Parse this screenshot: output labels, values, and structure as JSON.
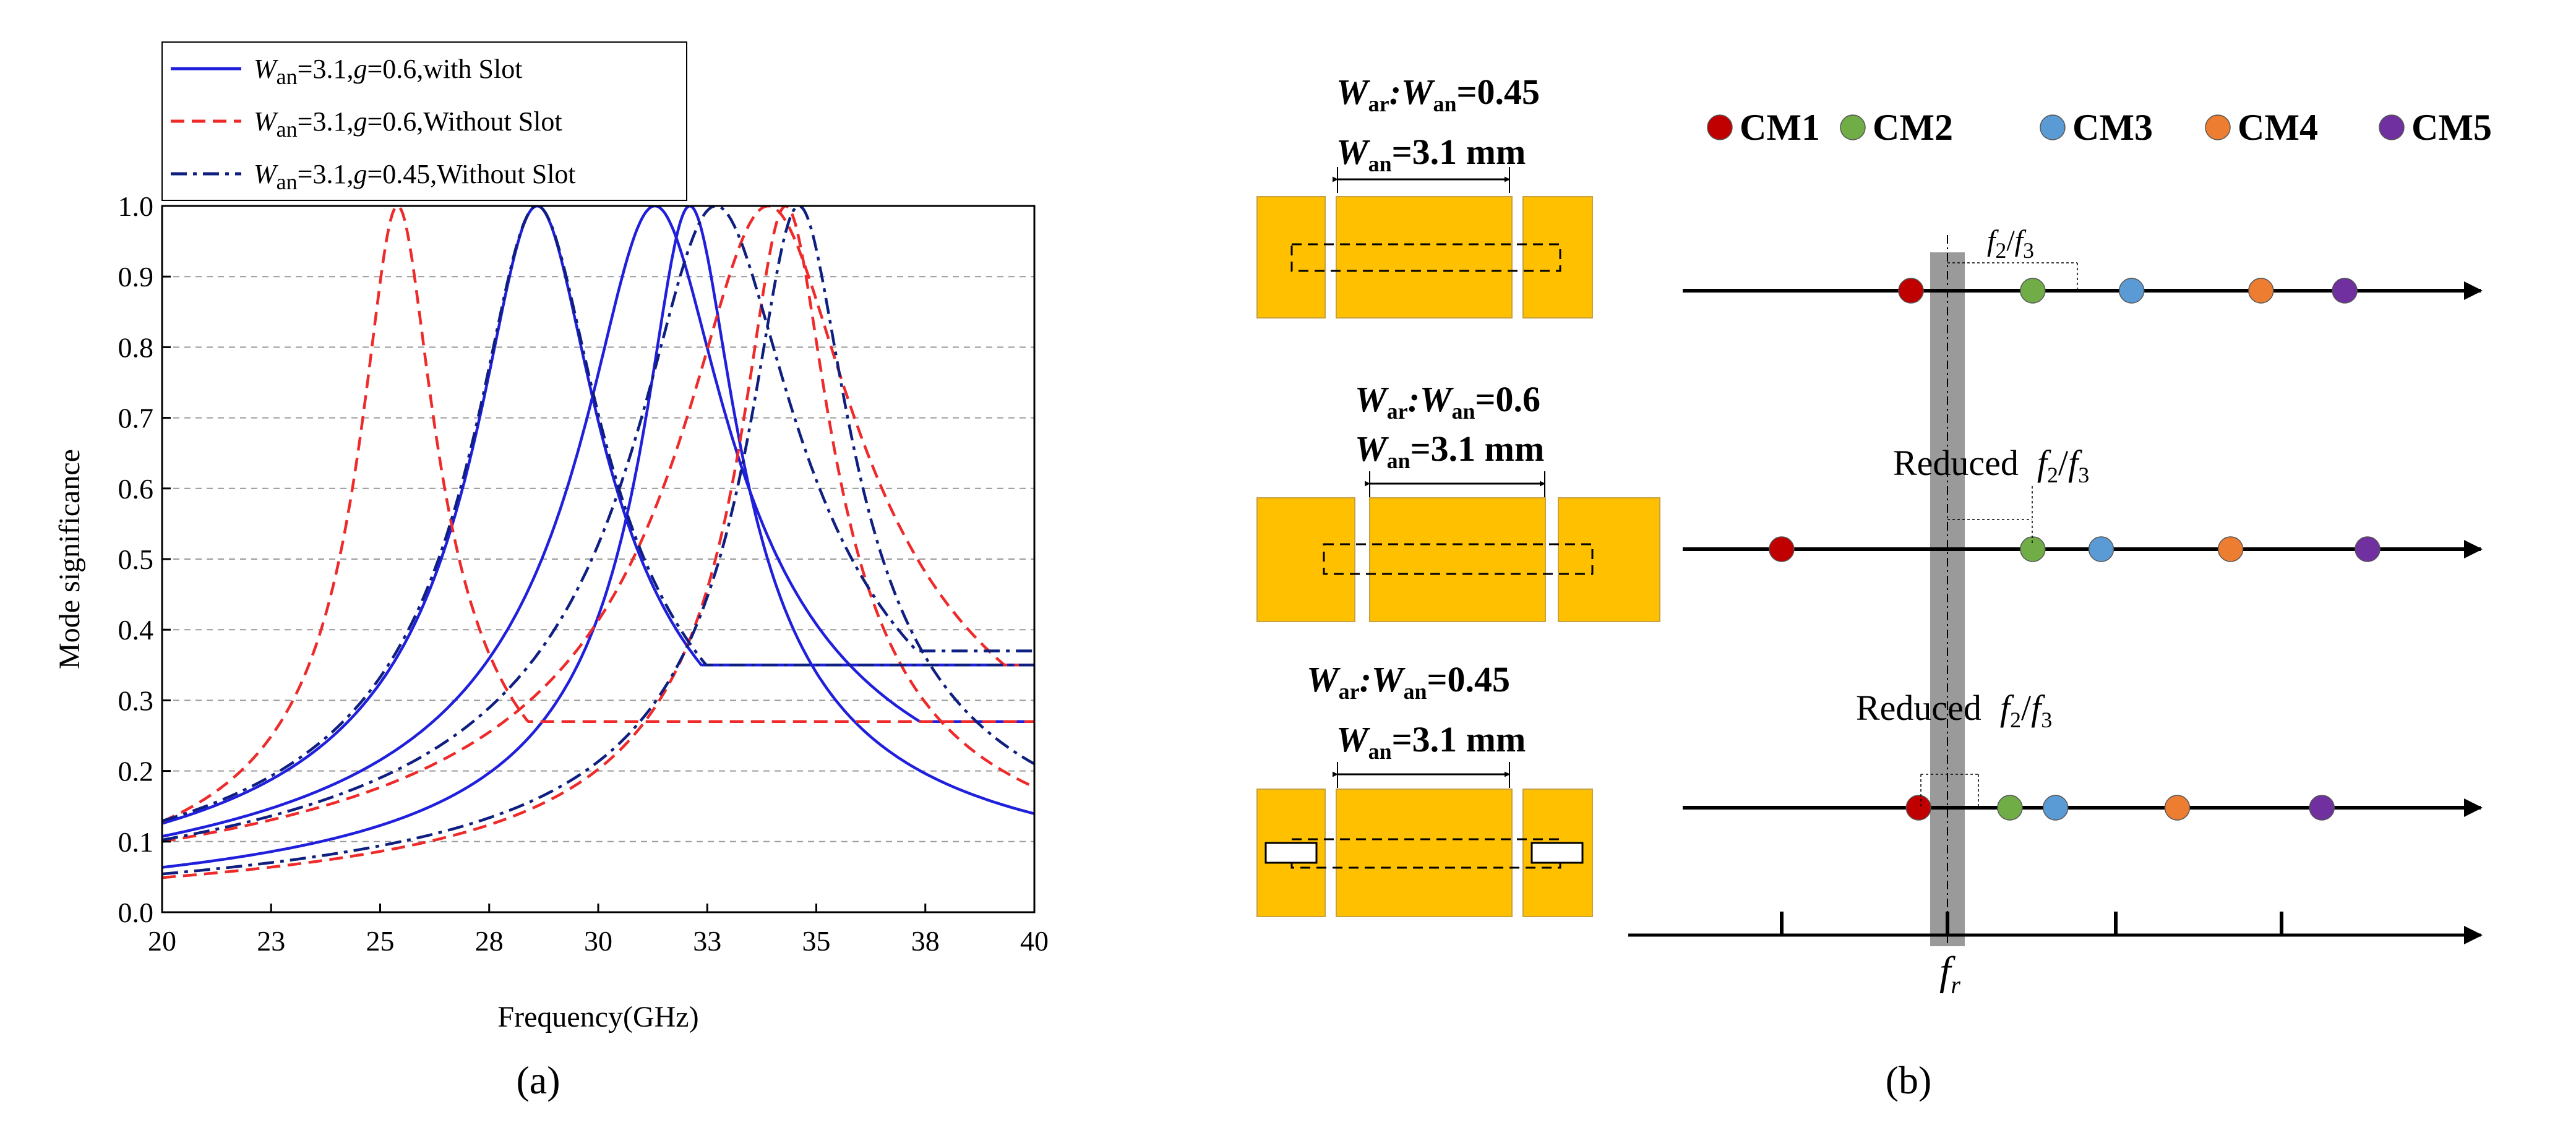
{
  "chart_data": [
    {
      "type": "line",
      "title": "",
      "panel_label": "(a)",
      "xlabel": "Frequency(GHz)",
      "ylabel": "Mode significance",
      "xlim": [
        20,
        40
      ],
      "ylim": [
        0,
        1.0
      ],
      "x_ticks": [
        "20",
        "23",
        "25",
        "28",
        "30",
        "33",
        "35",
        "38",
        "40"
      ],
      "x_tick_values": [
        20,
        22.5,
        25,
        27.5,
        30,
        32.5,
        35,
        37.5,
        40
      ],
      "y_ticks": [
        "0.0",
        "0.1",
        "0.2",
        "0.3",
        "0.4",
        "0.5",
        "0.6",
        "0.7",
        "0.8",
        "0.9",
        "1.0"
      ],
      "grid": "horizontal dashed",
      "legend": {
        "position": "top-left",
        "entries": [
          {
            "sym": "W",
            "sub": "an",
            "rest": "=3.1,",
            "g": "g",
            "tail": "=0.6,with Slot"
          },
          {
            "sym": "W",
            "sub": "an",
            "rest": "=3.1,",
            "g": "g",
            "tail": "=0.6,Without Slot"
          },
          {
            "sym": "W",
            "sub": "an",
            "rest": "=3.1,",
            "g": "g",
            "tail": "=0.45,Without Slot"
          }
        ]
      },
      "series": [
        {
          "name": "Wan=3.1,g=0.6,with Slot",
          "color": "#1f1fdc",
          "style": "solid",
          "curves": [
            {
              "fr": 28.6,
              "q": 10.8,
              "tail": [
                0.35,
                0.35
              ]
            },
            {
              "fr": 31.3,
              "q": 10.0,
              "tail": [
                0.27,
                0.27
              ]
            },
            {
              "fr": 32.1,
              "q": 16.0,
              "tail": [
                0.07,
                0.07
              ]
            }
          ]
        },
        {
          "name": "Wan=3.1,g=0.6,Without Slot",
          "color": "#ee2a2a",
          "style": "dashed",
          "curves": [
            {
              "fr": 25.4,
              "q": 16.0,
              "tail": [
                0.27,
                0.27
              ]
            },
            {
              "fr": 33.9,
              "q": 9.0,
              "tail": [
                0.35,
                0.35
              ]
            },
            {
              "fr": 34.3,
              "q": 18.0,
              "tail": [
                0.17,
                0.17
              ]
            }
          ]
        },
        {
          "name": "Wan=3.1,g=0.45,Without Slot",
          "color": "#0f1f80",
          "style": "dashdot",
          "curves": [
            {
              "fr": 28.6,
              "q": 10.5,
              "tail": [
                0.35,
                0.35
              ]
            },
            {
              "fr": 32.7,
              "q": 9.5,
              "tail": [
                0.37,
                0.37
              ]
            },
            {
              "fr": 34.6,
              "q": 16.0,
              "tail": [
                0.11,
                0.11
              ]
            }
          ]
        }
      ]
    },
    {
      "type": "diagram",
      "panel_label": "(b)",
      "modes": [
        {
          "label": "CM1",
          "color": "#c00000"
        },
        {
          "label": "CM2",
          "color": "#70ad47"
        },
        {
          "label": "CM3",
          "color": "#5b9bd5"
        },
        {
          "label": "CM4",
          "color": "#ed7d31"
        },
        {
          "label": "CM5",
          "color": "#7030a0"
        }
      ],
      "rows": [
        {
          "ratio_label": {
            "a": "W",
            "as": "ar",
            "b": ":W",
            "bs": "an",
            "val": "=0.45"
          },
          "width_label": {
            "a": "W",
            "as": "an",
            "val": "=3.1 mm"
          },
          "note": {
            "prefix": "",
            "f2": "f",
            "f2s": "2",
            "slash": "/",
            "f3": "f",
            "f3s": "3"
          },
          "mode_freq": [
            0.3,
            0.46,
            0.59,
            0.76,
            0.87
          ]
        },
        {
          "ratio_label": {
            "a": "W",
            "as": "ar",
            "b": ":W",
            "bs": "an",
            "val": "=0.6"
          },
          "width_label": {
            "a": "W",
            "as": "an",
            "val": "=3.1 mm"
          },
          "note": {
            "prefix": "Reduced",
            "f2": "f",
            "f2s": "2",
            "slash": "/",
            "f3": "f",
            "f3s": "3"
          },
          "mode_freq": [
            0.13,
            0.46,
            0.55,
            0.72,
            0.9
          ]
        },
        {
          "ratio_label": {
            "a": "W",
            "as": "ar",
            "b": ":W",
            "bs": "an",
            "val": "=0.45"
          },
          "width_label": {
            "a": "W",
            "as": "an",
            "val": "=3.1 mm"
          },
          "note": {
            "prefix": "Reduced",
            "f2": "f",
            "f2s": "2",
            "slash": "/",
            "f3": "f",
            "f3s": "3"
          },
          "mode_freq": [
            0.31,
            0.43,
            0.49,
            0.65,
            0.84
          ]
        }
      ],
      "fr_label": {
        "f": "f",
        "s": "r"
      }
    }
  ]
}
